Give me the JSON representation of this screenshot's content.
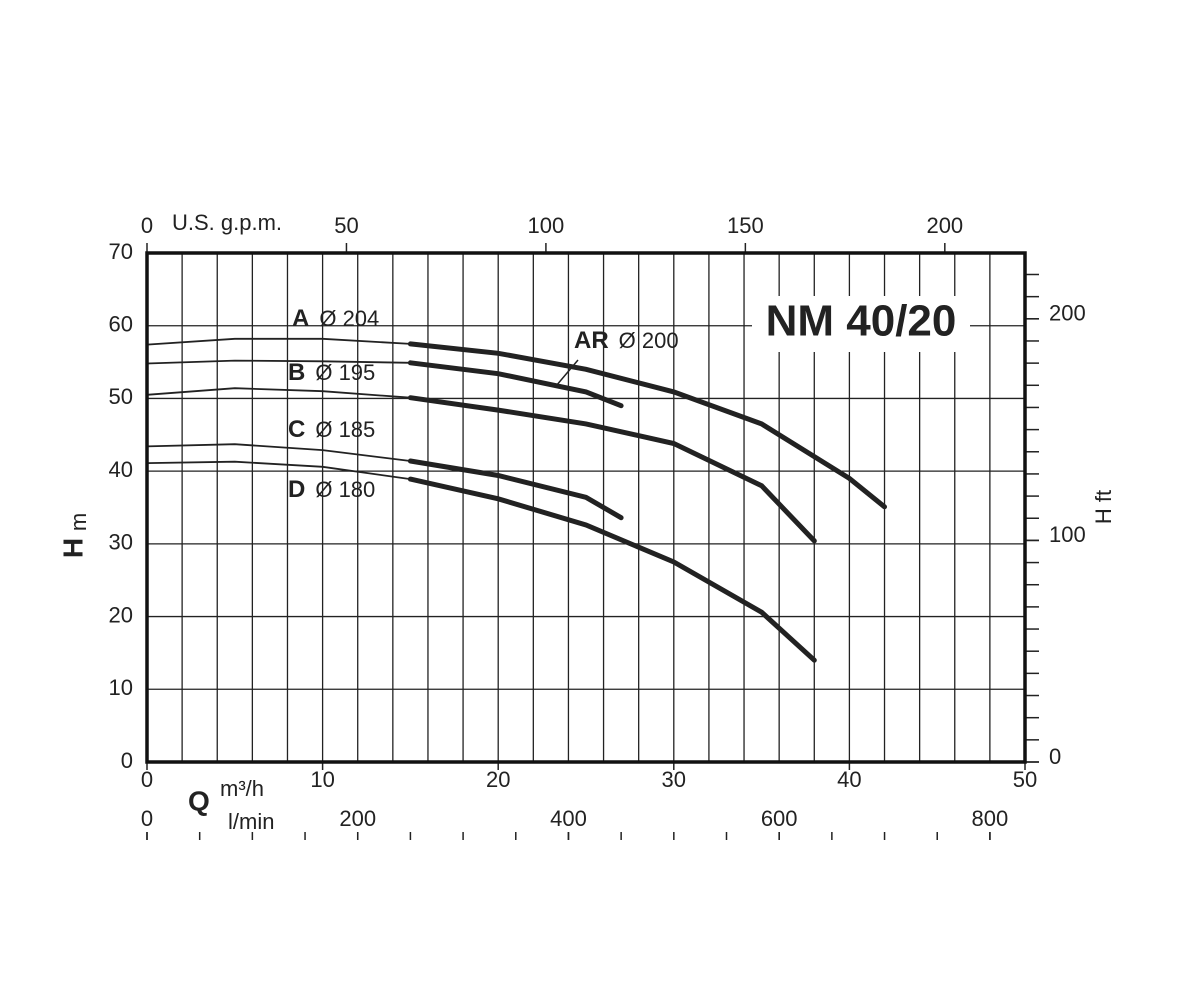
{
  "chart_data": {
    "type": "line",
    "title": "NM 40/20",
    "x_label": "Q",
    "x_unit": "m³/h",
    "xlim": [
      0,
      50
    ],
    "xticks": [
      0,
      10,
      20,
      30,
      40,
      50
    ],
    "x_grid_step": 2,
    "y_label": "H",
    "y_unit": "m",
    "ylim": [
      0,
      70
    ],
    "yticks": [
      0,
      10,
      20,
      30,
      40,
      50,
      60,
      70
    ],
    "y2_label": "H ft",
    "y2lim": [
      0,
      229.7
    ],
    "y2ticks": [
      0,
      100,
      200
    ],
    "y2_minor_step": 10,
    "x2_label": "U.S. g.p.m.",
    "x2lim": [
      0,
      220.1
    ],
    "x2ticks": [
      0,
      50,
      100,
      150,
      200
    ],
    "x3_label": "l/min",
    "x3lim": [
      0,
      833.3
    ],
    "x3ticks": [
      0,
      200,
      400,
      600,
      800
    ],
    "x3_minor_step": 50,
    "emphasis_from_x": 15,
    "color": "#222222",
    "series": [
      {
        "name": "A",
        "diameter": "Ø 204",
        "x": [
          0,
          5,
          10,
          15,
          20,
          25,
          30,
          35,
          40,
          42
        ],
        "values": [
          57.4,
          58.2,
          58.2,
          57.5,
          56.2,
          54.0,
          50.9,
          46.5,
          39.0,
          35.1
        ]
      },
      {
        "name": "AR",
        "diameter": "Ø 200",
        "x": [
          0,
          5,
          10,
          15,
          20,
          25,
          27
        ],
        "values": [
          54.8,
          55.2,
          55.1,
          54.9,
          53.4,
          50.9,
          49.0
        ]
      },
      {
        "name": "B",
        "diameter": "Ø 195",
        "x": [
          0,
          5,
          10,
          15,
          20,
          25,
          30,
          35,
          38
        ],
        "values": [
          50.5,
          51.4,
          51.0,
          50.1,
          48.4,
          46.5,
          43.8,
          38.0,
          30.4
        ]
      },
      {
        "name": "C",
        "diameter": "Ø 185",
        "x": [
          0,
          5,
          10,
          15,
          20,
          25,
          27
        ],
        "values": [
          43.4,
          43.7,
          42.9,
          41.4,
          39.4,
          36.4,
          33.6
        ]
      },
      {
        "name": "D",
        "diameter": "Ø 180",
        "x": [
          0,
          5,
          10,
          15,
          20,
          25,
          30,
          35,
          38
        ],
        "values": [
          41.1,
          41.3,
          40.6,
          38.9,
          36.2,
          32.6,
          27.5,
          20.6,
          14.0
        ]
      }
    ]
  }
}
